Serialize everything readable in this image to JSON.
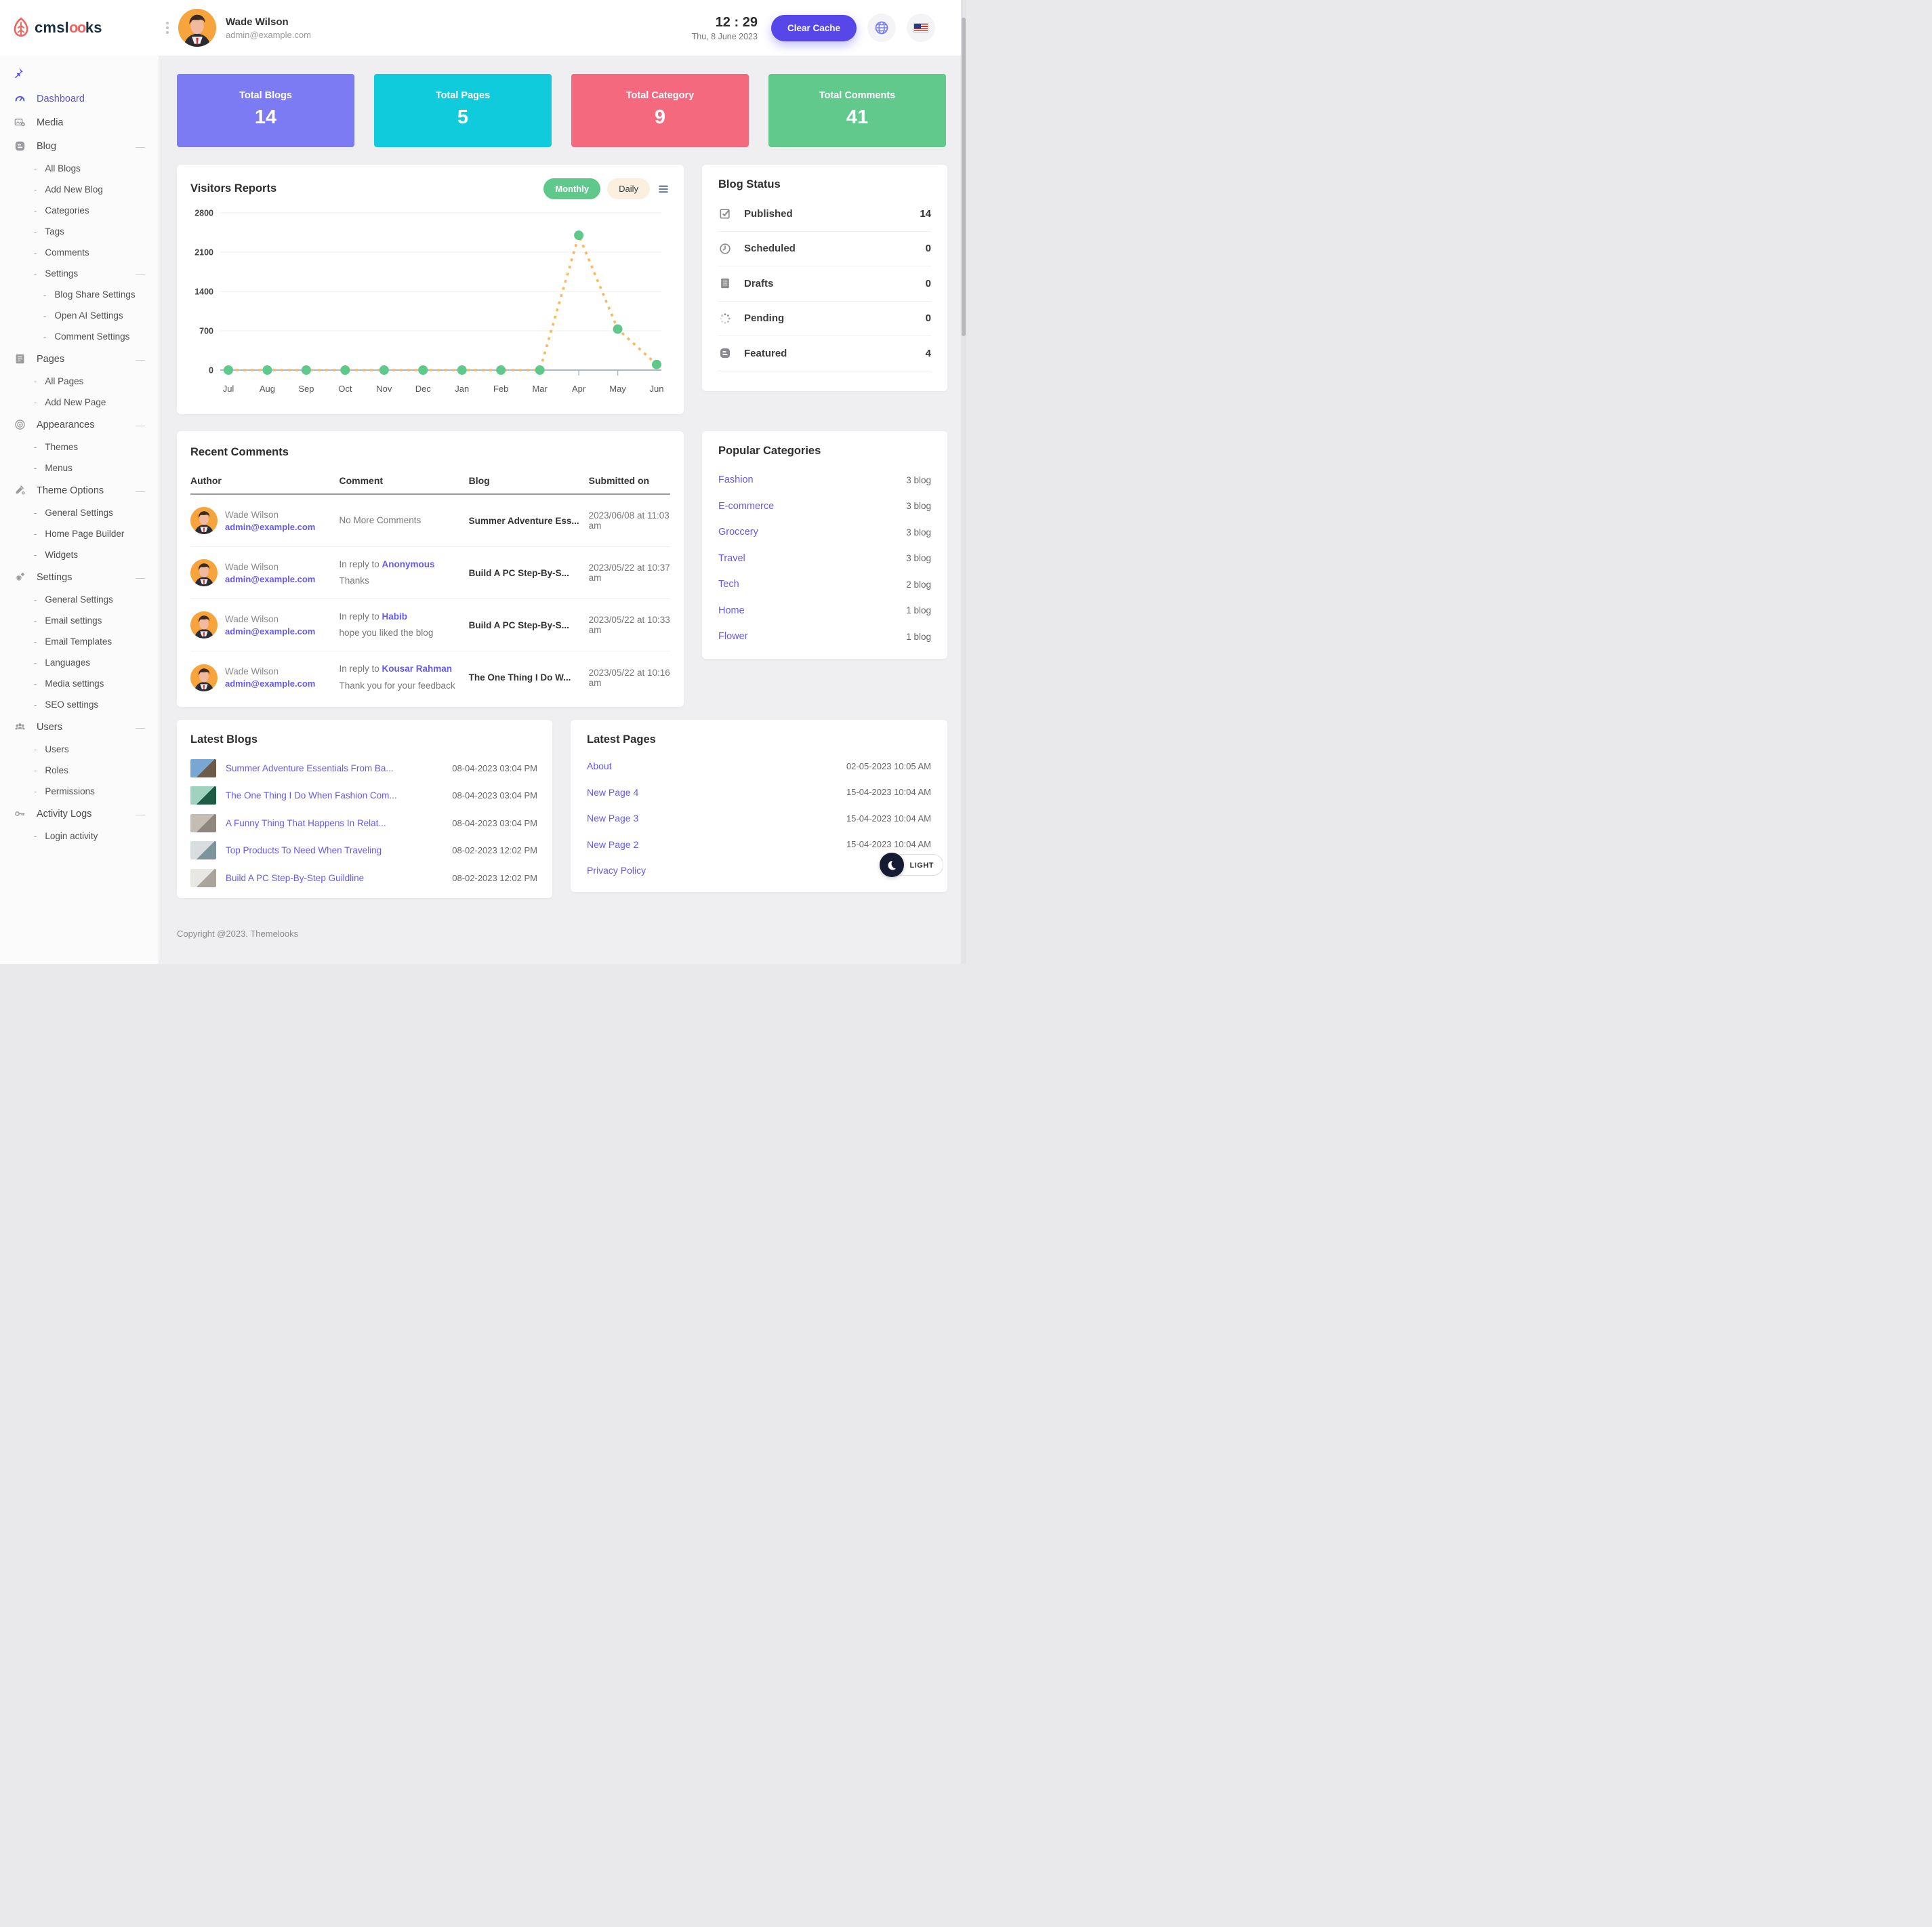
{
  "brand": {
    "name": "cmslooks"
  },
  "header": {
    "user": {
      "name": "Wade Wilson",
      "email": "admin@example.com"
    },
    "time": "12 : 29",
    "date": "Thu, 8 June 2023",
    "clear_cache_label": "Clear Cache",
    "icons": [
      "kebab-menu-icon",
      "globe-icon",
      "us-flag-icon"
    ]
  },
  "sidebar": {
    "pin_icon": "pushpin-icon",
    "rows": [
      {
        "label": "Dashboard",
        "level": 0,
        "icon": "gauge",
        "active": true
      },
      {
        "label": "Media",
        "level": 0,
        "icon": "media"
      },
      {
        "label": "Blog",
        "level": 0,
        "icon": "blogger",
        "collapse": true
      },
      {
        "label": "All Blogs",
        "level": 1
      },
      {
        "label": "Add New Blog",
        "level": 1
      },
      {
        "label": "Categories",
        "level": 1
      },
      {
        "label": "Tags",
        "level": 1
      },
      {
        "label": "Comments",
        "level": 1
      },
      {
        "label": "Settings",
        "level": 1,
        "collapse": true
      },
      {
        "label": "Blog Share Settings",
        "level": 2
      },
      {
        "label": "Open AI Settings",
        "level": 2
      },
      {
        "label": "Comment Settings",
        "level": 2
      },
      {
        "label": "Pages",
        "level": 0,
        "icon": "pagesdoc",
        "collapse": true
      },
      {
        "label": "All Pages",
        "level": 1
      },
      {
        "label": "Add New Page",
        "level": 1
      },
      {
        "label": "Appearances",
        "level": 0,
        "icon": "disc",
        "collapse": true
      },
      {
        "label": "Themes",
        "level": 1
      },
      {
        "label": "Menus",
        "level": 1
      },
      {
        "label": "Theme Options",
        "level": 0,
        "icon": "brush",
        "collapse": true
      },
      {
        "label": "General Settings",
        "level": 1
      },
      {
        "label": "Home Page Builder",
        "level": 1
      },
      {
        "label": "Widgets",
        "level": 1
      },
      {
        "label": "Settings",
        "level": 0,
        "icon": "gears",
        "collapse": true
      },
      {
        "label": "General Settings",
        "level": 1
      },
      {
        "label": "Email settings",
        "level": 1
      },
      {
        "label": "Email Templates",
        "level": 1
      },
      {
        "label": "Languages",
        "level": 1
      },
      {
        "label": "Media settings",
        "level": 1
      },
      {
        "label": "SEO settings",
        "level": 1
      },
      {
        "label": "Users",
        "level": 0,
        "icon": "people",
        "collapse": true
      },
      {
        "label": "Users",
        "level": 1
      },
      {
        "label": "Roles",
        "level": 1
      },
      {
        "label": "Permissions",
        "level": 1
      },
      {
        "label": "Activity Logs",
        "level": 0,
        "icon": "key",
        "collapse": true
      },
      {
        "label": "Login activity",
        "level": 1
      }
    ]
  },
  "stats": [
    {
      "label": "Total Blogs",
      "value": "14",
      "color": "#7D7BF3"
    },
    {
      "label": "Total Pages",
      "value": "5",
      "color": "#10CBDB"
    },
    {
      "label": "Total Category",
      "value": "9",
      "color": "#F5697E"
    },
    {
      "label": "Total Comments",
      "value": "41",
      "color": "#61C98C"
    }
  ],
  "visitors": {
    "title": "Visitors Reports",
    "monthly_label": "Monthly",
    "daily_label": "Daily",
    "menu_icon": "hamburger-icon"
  },
  "chart_data": {
    "type": "line",
    "title": "Visitors Reports",
    "categories": [
      "Jul",
      "Aug",
      "Sep",
      "Oct",
      "Nov",
      "Dec",
      "Jan",
      "Feb",
      "Mar",
      "Apr",
      "May",
      "Jun"
    ],
    "series": [
      {
        "name": "Visitors",
        "values": [
          0,
          0,
          0,
          0,
          0,
          0,
          0,
          0,
          0,
          2400,
          730,
          100
        ]
      }
    ],
    "yticks": [
      0,
      700,
      1400,
      2100,
      2800
    ],
    "ylim": [
      0,
      2800
    ],
    "line_color": "#F7BA5E",
    "point_color": "#5FC98B",
    "line_style": "dashed",
    "grid": true,
    "legend": "none"
  },
  "blog_status": {
    "title": "Blog Status",
    "rows": [
      {
        "icon": "checkbox",
        "label": "Published",
        "value": "14"
      },
      {
        "icon": "clock",
        "label": "Scheduled",
        "value": "0"
      },
      {
        "icon": "doc",
        "label": "Drafts",
        "value": "0"
      },
      {
        "icon": "spinner",
        "label": "Pending",
        "value": "0"
      },
      {
        "icon": "blogger",
        "label": "Featured",
        "value": "4"
      }
    ]
  },
  "recent_comments": {
    "title": "Recent Comments",
    "columns": [
      "Author",
      "Comment",
      "Blog",
      "Submitted on"
    ],
    "reply_prefix": "In reply to",
    "rows": [
      {
        "author": "Wade Wilson",
        "email": "admin@example.com",
        "reply_to": "",
        "comment": "No More Comments",
        "blog": "Summer Adventure Ess...",
        "submitted": "2023/06/08 at 11:03 am"
      },
      {
        "author": "Wade Wilson",
        "email": "admin@example.com",
        "reply_to": "Anonymous",
        "comment": "Thanks",
        "blog": "Build A PC Step-By-S...",
        "submitted": "2023/05/22 at 10:37 am"
      },
      {
        "author": "Wade Wilson",
        "email": "admin@example.com",
        "reply_to": "Habib",
        "comment": "hope you liked the blog",
        "blog": "Build A PC Step-By-S...",
        "submitted": "2023/05/22 at 10:33 am"
      },
      {
        "author": "Wade Wilson",
        "email": "admin@example.com",
        "reply_to": "Kousar Rahman",
        "comment": "Thank you for your feedback",
        "blog": "The One Thing I Do W...",
        "submitted": "2023/05/22 at 10:16 am"
      }
    ]
  },
  "popular_categories": {
    "title": "Popular Categories",
    "items": [
      {
        "name": "Fashion",
        "count": "3 blog"
      },
      {
        "name": "E-commerce",
        "count": "3 blog"
      },
      {
        "name": "Groccery",
        "count": "3 blog"
      },
      {
        "name": "Travel",
        "count": "3 blog"
      },
      {
        "name": "Tech",
        "count": "2 blog"
      },
      {
        "name": "Home",
        "count": "1 blog"
      },
      {
        "name": "Flower",
        "count": "1 blog"
      }
    ]
  },
  "latest_blogs": {
    "title": "Latest Blogs",
    "items": [
      {
        "title": "Summer Adventure Essentials From Ba...",
        "date": "08-04-2023 03:04 PM",
        "thumb": [
          "#79a7d4",
          "#6d5a49"
        ]
      },
      {
        "title": "The One Thing I Do When Fashion Com...",
        "date": "08-04-2023 03:04 PM",
        "thumb": [
          "#9fd3c0",
          "#1e5c46"
        ]
      },
      {
        "title": "A Funny Thing That Happens In Relat...",
        "date": "08-04-2023 03:04 PM",
        "thumb": [
          "#c3bdb4",
          "#8d877d"
        ]
      },
      {
        "title": "Top Products To Need When Traveling",
        "date": "08-02-2023 12:02 PM",
        "thumb": [
          "#d8dee0",
          "#7e949c"
        ]
      },
      {
        "title": "Build A PC Step-By-Step Guildline",
        "date": "08-02-2023 12:02 PM",
        "thumb": [
          "#e9e7e3",
          "#a9a49c"
        ]
      }
    ]
  },
  "latest_pages": {
    "title": "Latest Pages",
    "items": [
      {
        "title": "About",
        "date": "02-05-2023 10:05 AM"
      },
      {
        "title": "New Page 4",
        "date": "15-04-2023 10:04 AM"
      },
      {
        "title": "New Page 3",
        "date": "15-04-2023 10:04 AM"
      },
      {
        "title": "New Page 2",
        "date": "15-04-2023 10:04 AM"
      },
      {
        "title": "Privacy Policy",
        "date": "21-03-2023"
      }
    ]
  },
  "theme_toggle": {
    "label": "LIGHT",
    "icon": "moon-icon"
  },
  "footer": {
    "copyright": "Copyright @2023. Themelooks"
  },
  "colors": {
    "accent": "#5747E8",
    "link": "#6459F0",
    "green": "#5FC98B",
    "orange": "#F7BA5E",
    "card_purple": "#7D7BF3",
    "card_cyan": "#10CBDB",
    "card_pink": "#F5697E",
    "card_green": "#61C98C"
  }
}
